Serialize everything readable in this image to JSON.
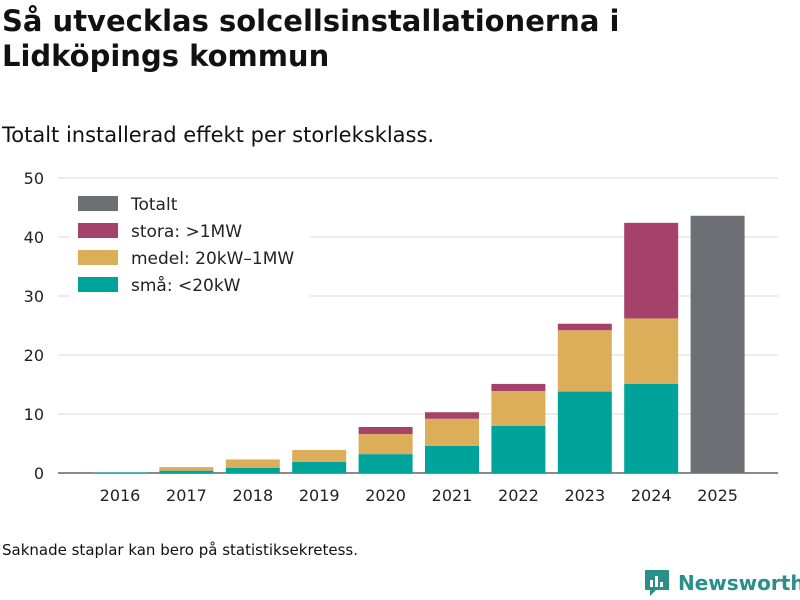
{
  "title": "Så utvecklas solcellsinstallationerna i Lidköpings kommun",
  "subtitle": "Totalt installerad effekt per storleksklass.",
  "footnote": "Saknade staplar kan bero på statistiksekretess.",
  "brand": {
    "label": "Newsworthy",
    "icon": "bar-chart-icon",
    "color": "#2a8e8a"
  },
  "chart_data": {
    "type": "bar",
    "stacked": true,
    "title": "Så utvecklas solcellsinstallationerna i Lidköpings kommun",
    "xlabel": "",
    "ylabel": "",
    "ylim": [
      0,
      50
    ],
    "yticks": [
      0,
      10,
      20,
      30,
      40,
      50
    ],
    "grid": true,
    "legend_position": "top-left",
    "categories": [
      "2016",
      "2017",
      "2018",
      "2019",
      "2020",
      "2021",
      "2022",
      "2023",
      "2024",
      "2025"
    ],
    "series": [
      {
        "name": "små: <20kW",
        "color": "#00a39a",
        "values": [
          0.1,
          0.4,
          0.9,
          1.9,
          3.2,
          4.6,
          8.0,
          13.8,
          15.1,
          null
        ]
      },
      {
        "name": "medel: 20kW–1MW",
        "color": "#dcae5a",
        "values": [
          0.0,
          0.6,
          1.4,
          2.0,
          3.4,
          4.6,
          5.9,
          10.4,
          11.1,
          null
        ]
      },
      {
        "name": "stora: >1MW",
        "color": "#a6426a",
        "values": [
          0,
          0,
          0,
          0,
          1.2,
          1.1,
          1.2,
          1.1,
          16.2,
          null
        ]
      },
      {
        "name": "Totalt",
        "color": "#6e6e75",
        "values": [
          null,
          null,
          null,
          null,
          null,
          null,
          null,
          null,
          null,
          43.6
        ]
      }
    ],
    "legend": [
      {
        "name": "Totalt",
        "color": "#6e6e75"
      },
      {
        "name": "stora: >1MW",
        "color": "#a6426a"
      },
      {
        "name": "medel: 20kW–1MW",
        "color": "#dcae5a"
      },
      {
        "name": "små: <20kW",
        "color": "#00a39a"
      }
    ]
  }
}
